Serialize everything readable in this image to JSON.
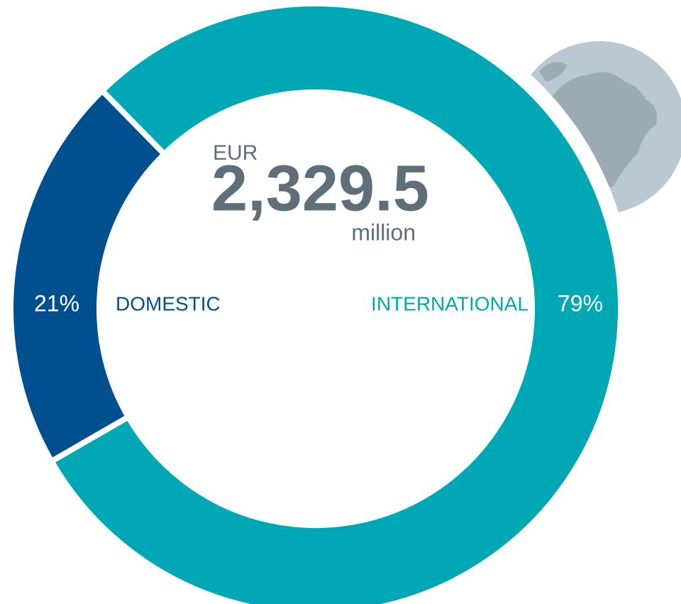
{
  "chart_data": {
    "type": "pie",
    "donut": true,
    "categories": [
      "DOMESTIC",
      "INTERNATIONAL"
    ],
    "values": [
      21,
      79
    ],
    "value_labels": [
      "21%",
      "79%"
    ],
    "colors": [
      "#00508f",
      "#00a7b5"
    ],
    "center_text": [
      "EUR",
      "2,329.5",
      "million"
    ]
  }
}
